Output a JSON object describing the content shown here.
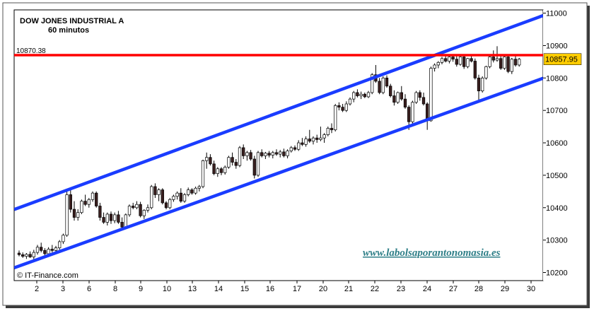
{
  "chart_data": {
    "type": "candlestick",
    "title": "DOW JONES INDUSTRIAL A",
    "subtitle": "60 minutos",
    "y_range": [
      10175,
      11010
    ],
    "y_ticks": [
      {
        "value": 11000,
        "label": "11000"
      },
      {
        "value": 10900,
        "label": "10900"
      },
      {
        "value": 10800,
        "label": "10800"
      },
      {
        "value": 10700,
        "label": "10700"
      },
      {
        "value": 10600,
        "label": "10600"
      },
      {
        "value": 10500,
        "label": "10500"
      },
      {
        "value": 10400,
        "label": "10400"
      },
      {
        "value": 10300,
        "label": "10300"
      },
      {
        "value": 10200,
        "label": "10200"
      }
    ],
    "x_labels": [
      "2",
      "3",
      "6",
      "8",
      "9",
      "10",
      "13",
      "14",
      "15",
      "16",
      "17",
      "20",
      "21",
      "22",
      "23",
      "24",
      "27",
      "28",
      "29",
      "30"
    ],
    "resistance": {
      "value": 10870.38,
      "label": "10870.38",
      "color": "#ff0000"
    },
    "last_price": {
      "value": 10857.95,
      "label": "10857.95",
      "color": "#ffcc00"
    },
    "channel": {
      "color": "#1a3cff",
      "upper": [
        {
          "bar": 0,
          "value": 10400
        },
        {
          "bar": 139,
          "value": 10978
        }
      ],
      "lower": [
        {
          "bar": 0,
          "value": 10220
        },
        {
          "bar": 139,
          "value": 10785
        }
      ]
    },
    "up_color": "#ffffff",
    "down_color": "#3a1f1f",
    "candles": [
      [
        10260,
        10268,
        10250,
        10255
      ],
      [
        10255,
        10262,
        10245,
        10250
      ],
      [
        10250,
        10260,
        10242,
        10256
      ],
      [
        10256,
        10265,
        10245,
        10248
      ],
      [
        10248,
        10270,
        10240,
        10262
      ],
      [
        10262,
        10285,
        10255,
        10278
      ],
      [
        10278,
        10292,
        10262,
        10268
      ],
      [
        10268,
        10275,
        10250,
        10258
      ],
      [
        10258,
        10278,
        10252,
        10272
      ],
      [
        10272,
        10285,
        10262,
        10268
      ],
      [
        10268,
        10282,
        10260,
        10276
      ],
      [
        10276,
        10300,
        10270,
        10295
      ],
      [
        10295,
        10320,
        10288,
        10315
      ],
      [
        10315,
        10450,
        10310,
        10440
      ],
      [
        10440,
        10455,
        10385,
        10395
      ],
      [
        10395,
        10420,
        10360,
        10370
      ],
      [
        10370,
        10395,
        10360,
        10385
      ],
      [
        10385,
        10425,
        10380,
        10420
      ],
      [
        10420,
        10440,
        10405,
        10410
      ],
      [
        10410,
        10430,
        10400,
        10425
      ],
      [
        10425,
        10450,
        10418,
        10445
      ],
      [
        10445,
        10450,
        10400,
        10405
      ],
      [
        10405,
        10415,
        10360,
        10370
      ],
      [
        10370,
        10385,
        10350,
        10355
      ],
      [
        10355,
        10385,
        10345,
        10380
      ],
      [
        10380,
        10388,
        10350,
        10360
      ],
      [
        10360,
        10385,
        10352,
        10378
      ],
      [
        10378,
        10390,
        10350,
        10355
      ],
      [
        10355,
        10370,
        10330,
        10340
      ],
      [
        10340,
        10382,
        10335,
        10378
      ],
      [
        10378,
        10410,
        10372,
        10405
      ],
      [
        10405,
        10415,
        10395,
        10400
      ],
      [
        10400,
        10420,
        10395,
        10410
      ],
      [
        10410,
        10418,
        10370,
        10375
      ],
      [
        10375,
        10395,
        10365,
        10392
      ],
      [
        10392,
        10410,
        10385,
        10400
      ],
      [
        10400,
        10470,
        10395,
        10465
      ],
      [
        10465,
        10475,
        10430,
        10440
      ],
      [
        10440,
        10460,
        10420,
        10455
      ],
      [
        10455,
        10460,
        10410,
        10415
      ],
      [
        10415,
        10420,
        10395,
        10400
      ],
      [
        10400,
        10430,
        10395,
        10425
      ],
      [
        10425,
        10440,
        10418,
        10435
      ],
      [
        10435,
        10450,
        10425,
        10445
      ],
      [
        10445,
        10460,
        10415,
        10420
      ],
      [
        10420,
        10445,
        10415,
        10440
      ],
      [
        10440,
        10462,
        10435,
        10455
      ],
      [
        10455,
        10460,
        10440,
        10445
      ],
      [
        10445,
        10465,
        10440,
        10460
      ],
      [
        10460,
        10470,
        10450,
        10465
      ],
      [
        10465,
        10548,
        10460,
        10545
      ],
      [
        10545,
        10570,
        10520,
        10555
      ],
      [
        10555,
        10565,
        10530,
        10535
      ],
      [
        10535,
        10545,
        10500,
        10505
      ],
      [
        10505,
        10525,
        10495,
        10520
      ],
      [
        10520,
        10525,
        10500,
        10508
      ],
      [
        10508,
        10530,
        10502,
        10525
      ],
      [
        10525,
        10560,
        10520,
        10555
      ],
      [
        10555,
        10570,
        10530,
        10540
      ],
      [
        10540,
        10550,
        10520,
        10530
      ],
      [
        10530,
        10590,
        10525,
        10585
      ],
      [
        10585,
        10595,
        10550,
        10560
      ],
      [
        10560,
        10575,
        10545,
        10570
      ],
      [
        10570,
        10578,
        10545,
        10550
      ],
      [
        10550,
        10560,
        10490,
        10500
      ],
      [
        10500,
        10575,
        10495,
        10570
      ],
      [
        10570,
        10580,
        10555,
        10560
      ],
      [
        10560,
        10572,
        10550,
        10568
      ],
      [
        10568,
        10575,
        10555,
        10562
      ],
      [
        10562,
        10575,
        10552,
        10570
      ],
      [
        10570,
        10580,
        10560,
        10565
      ],
      [
        10565,
        10578,
        10555,
        10572
      ],
      [
        10572,
        10582,
        10555,
        10560
      ],
      [
        10560,
        10580,
        10552,
        10575
      ],
      [
        10575,
        10590,
        10570,
        10585
      ],
      [
        10585,
        10592,
        10575,
        10580
      ],
      [
        10580,
        10608,
        10575,
        10600
      ],
      [
        10600,
        10615,
        10590,
        10595
      ],
      [
        10595,
        10620,
        10588,
        10612
      ],
      [
        10612,
        10640,
        10600,
        10605
      ],
      [
        10605,
        10620,
        10595,
        10615
      ],
      [
        10615,
        10625,
        10600,
        10610
      ],
      [
        10610,
        10650,
        10605,
        10615
      ],
      [
        10615,
        10630,
        10600,
        10625
      ],
      [
        10625,
        10650,
        10620,
        10645
      ],
      [
        10645,
        10660,
        10630,
        10640
      ],
      [
        10640,
        10720,
        10635,
        10715
      ],
      [
        10715,
        10725,
        10700,
        10710
      ],
      [
        10710,
        10720,
        10695,
        10700
      ],
      [
        10700,
        10728,
        10695,
        10720
      ],
      [
        10720,
        10740,
        10715,
        10735
      ],
      [
        10735,
        10760,
        10725,
        10755
      ],
      [
        10755,
        10765,
        10740,
        10745
      ],
      [
        10745,
        10758,
        10735,
        10750
      ],
      [
        10750,
        10755,
        10738,
        10742
      ],
      [
        10742,
        10760,
        10738,
        10755
      ],
      [
        10755,
        10815,
        10750,
        10810
      ],
      [
        10810,
        10840,
        10785,
        10790
      ],
      [
        10790,
        10800,
        10750,
        10755
      ],
      [
        10755,
        10805,
        10750,
        10800
      ],
      [
        10800,
        10808,
        10770,
        10775
      ],
      [
        10775,
        10782,
        10740,
        10745
      ],
      [
        10745,
        10762,
        10715,
        10725
      ],
      [
        10725,
        10758,
        10720,
        10755
      ],
      [
        10755,
        10775,
        10730,
        10735
      ],
      [
        10735,
        10750,
        10705,
        10710
      ],
      [
        10710,
        10716,
        10640,
        10665
      ],
      [
        10665,
        10730,
        10660,
        10725
      ],
      [
        10725,
        10760,
        10720,
        10755
      ],
      [
        10755,
        10762,
        10730,
        10740
      ],
      [
        10740,
        10755,
        10715,
        10720
      ],
      [
        10720,
        10725,
        10640,
        10668
      ],
      [
        10668,
        10835,
        10665,
        10830
      ],
      [
        10830,
        10845,
        10820,
        10840
      ],
      [
        10840,
        10852,
        10830,
        10848
      ],
      [
        10848,
        10865,
        10842,
        10860
      ],
      [
        10860,
        10870,
        10848,
        10852
      ],
      [
        10852,
        10868,
        10845,
        10865
      ],
      [
        10865,
        10872,
        10850,
        10858
      ],
      [
        10858,
        10870,
        10835,
        10842
      ],
      [
        10842,
        10868,
        10838,
        10865
      ],
      [
        10865,
        10870,
        10828,
        10835
      ],
      [
        10835,
        10862,
        10830,
        10860
      ],
      [
        10860,
        10872,
        10848,
        10852
      ],
      [
        10852,
        10860,
        10795,
        10800
      ],
      [
        10800,
        10810,
        10725,
        10760
      ],
      [
        10760,
        10805,
        10755,
        10800
      ],
      [
        10800,
        10838,
        10795,
        10835
      ],
      [
        10835,
        10870,
        10830,
        10865
      ],
      [
        10865,
        10885,
        10848,
        10855
      ],
      [
        10855,
        10898,
        10850,
        10860
      ],
      [
        10860,
        10872,
        10825,
        10830
      ],
      [
        10830,
        10870,
        10825,
        10865
      ],
      [
        10865,
        10872,
        10815,
        10820
      ],
      [
        10820,
        10862,
        10812,
        10858
      ],
      [
        10858,
        10872,
        10835,
        10840
      ],
      [
        10840,
        10862,
        10835,
        10858
      ]
    ]
  },
  "credit": "© IT-Finance.com",
  "watermark": "www.labolsaporantonomasia.es"
}
